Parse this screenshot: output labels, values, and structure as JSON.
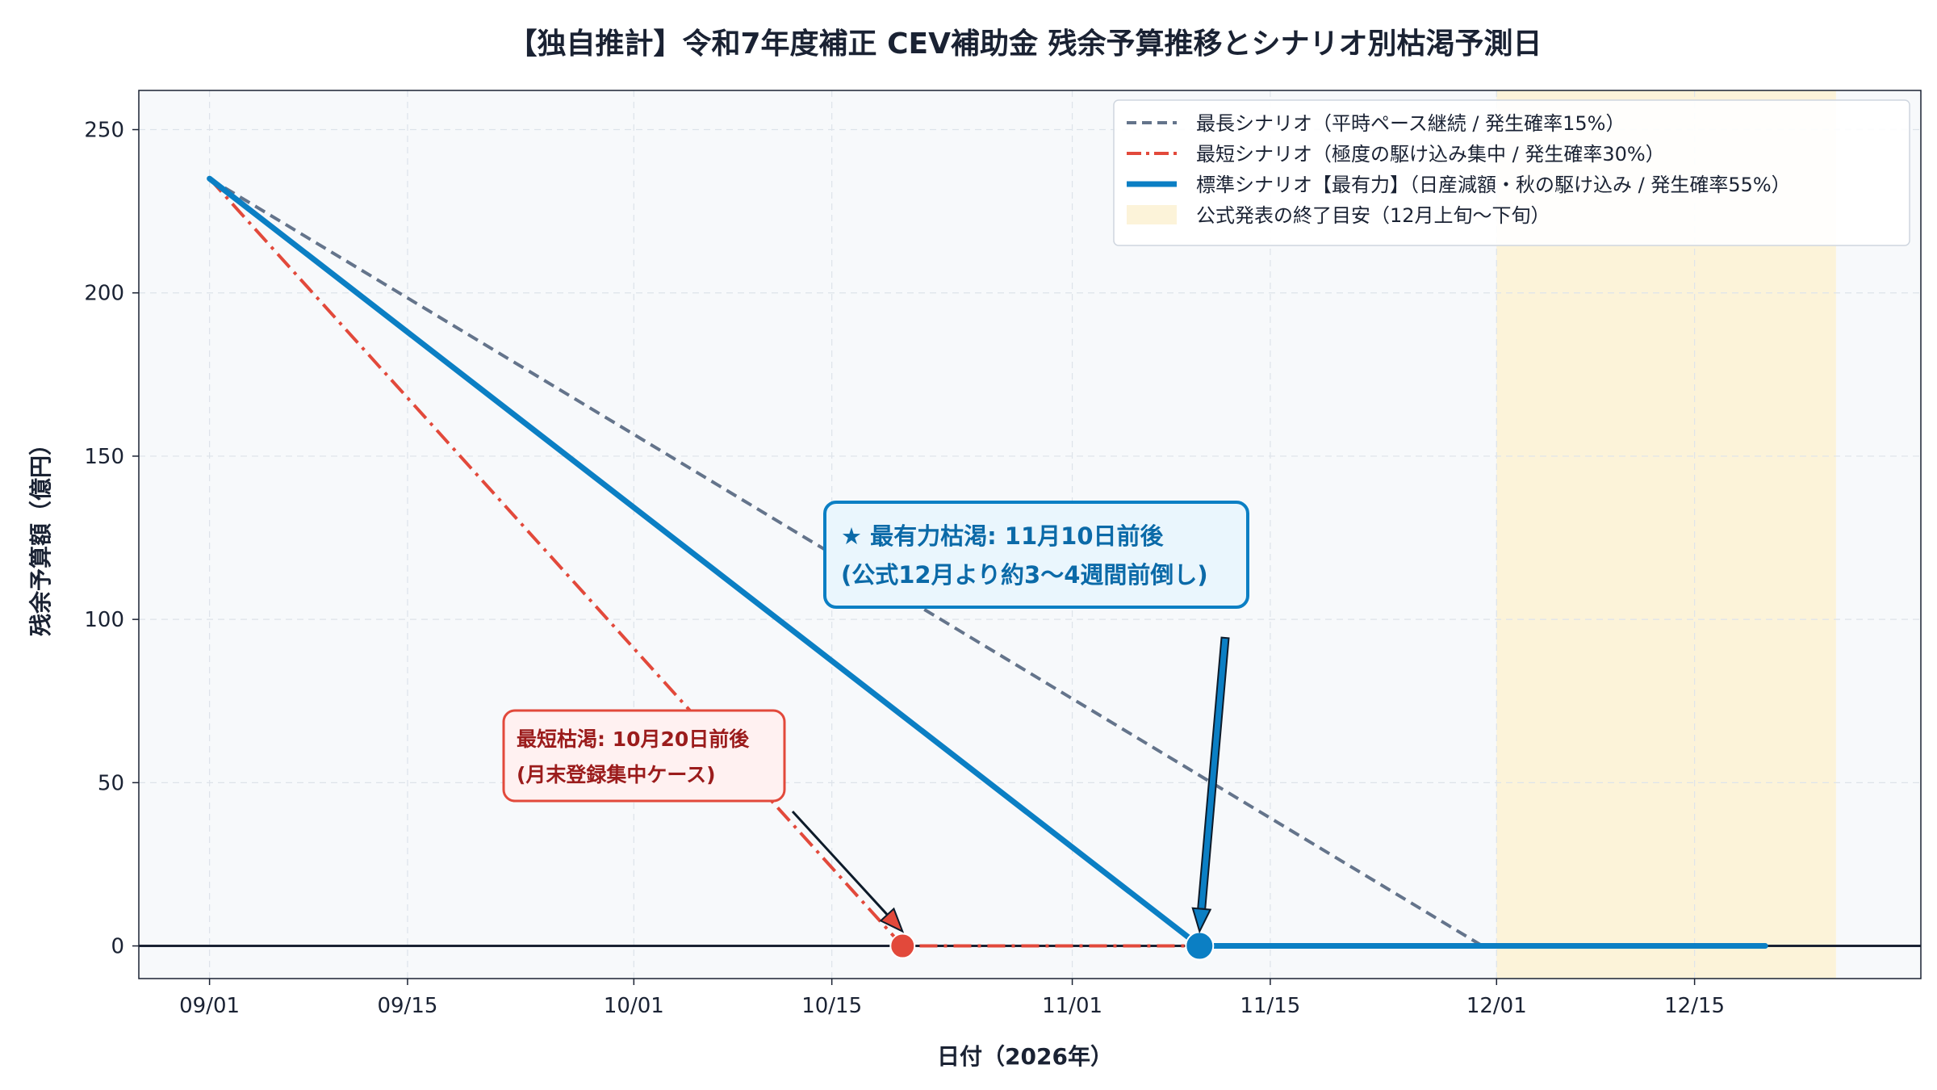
{
  "chart_data": {
    "type": "line",
    "title": "【独自推計】令和7年度補正 CEV補助金 残余予算推移とシナリオ別枯渇予測日",
    "xlabel": "日付（2026年）",
    "ylabel": "残余予算額（億円）",
    "xlim": [
      "2026-08-27",
      "2026-12-31"
    ],
    "ylim": [
      -10,
      262
    ],
    "x_ticks": [
      "2026-09-01",
      "2026-09-15",
      "2026-10-01",
      "2026-10-15",
      "2026-11-01",
      "2026-11-15",
      "2026-12-01",
      "2026-12-15"
    ],
    "x_tick_labels": [
      "09/01",
      "09/15",
      "10/01",
      "10/15",
      "11/01",
      "11/15",
      "12/01",
      "12/15"
    ],
    "y_ticks": [
      0,
      50,
      100,
      150,
      200,
      250
    ],
    "y_tick_labels": [
      "0",
      "50",
      "100",
      "150",
      "200",
      "250"
    ],
    "grid": true,
    "legend_position": "top-right",
    "series": [
      {
        "name": "最長シナリオ（平時ペース継続 / 発生確率15%）",
        "color": "#64748b",
        "style": "dashed",
        "points": [
          [
            "2026-09-01",
            235
          ],
          [
            "2026-11-30",
            0
          ]
        ]
      },
      {
        "name": "最短シナリオ（極度の駆け込み集中 / 発生確率30%）",
        "color": "#e2493b",
        "style": "dashdot",
        "points": [
          [
            "2026-09-01",
            235
          ],
          [
            "2026-10-20",
            0
          ],
          [
            "2026-11-10",
            0
          ]
        ]
      },
      {
        "name": "標準シナリオ【最有力】（日産減額・秋の駆け込み / 発生確率55%）",
        "color": "#0b7fc4",
        "style": "solid",
        "points": [
          [
            "2026-09-01",
            235
          ],
          [
            "2026-11-10",
            0
          ],
          [
            "2026-12-20",
            0
          ]
        ]
      }
    ],
    "shaded_region": {
      "label": "公式発表の終了目安（12月上旬〜下旬）",
      "color": "#fcf3d9",
      "x_start": "2026-12-01",
      "x_end": "2026-12-25"
    },
    "markers": [
      {
        "x": "2026-10-20",
        "y": 0,
        "color": "#e2493b"
      },
      {
        "x": "2026-11-10",
        "y": 0,
        "color": "#0b7fc4"
      }
    ],
    "annotations": [
      {
        "id": "shortest",
        "lines": [
          "最短枯渇: 10月20日前後",
          "(月末登録集中ケース)"
        ],
        "text_color": "#9b1c1c",
        "border_color": "#e2493b",
        "fill_color": "#fff1f1",
        "arrow_to": [
          "2026-10-20",
          0
        ]
      },
      {
        "id": "standard",
        "lines": [
          "★ 最有力枯渇: 11月10日前後",
          "(公式12月より約3〜4週間前倒し)"
        ],
        "text_color": "#0b6aa8",
        "border_color": "#0b7fc4",
        "fill_color": "#eaf6fd",
        "arrow_to": [
          "2026-11-10",
          0
        ]
      }
    ]
  }
}
